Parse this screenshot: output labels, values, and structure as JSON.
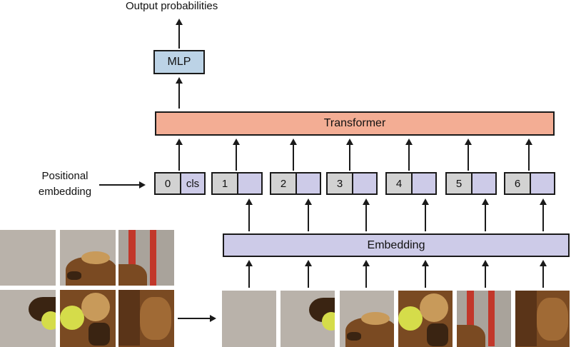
{
  "diagram": {
    "output_label": "Output probabilities",
    "mlp_label": "MLP",
    "transformer_label": "Transformer",
    "embedding_label": "Embedding",
    "positional_label_line1": "Positional",
    "positional_label_line2": "embedding",
    "tokens": [
      {
        "index": "0",
        "content": "cls"
      },
      {
        "index": "1",
        "content": ""
      },
      {
        "index": "2",
        "content": ""
      },
      {
        "index": "3",
        "content": ""
      },
      {
        "index": "4",
        "content": ""
      },
      {
        "index": "5",
        "content": ""
      },
      {
        "index": "6",
        "content": ""
      }
    ]
  },
  "colors": {
    "mlp_fill": "#bcd3e6",
    "transformer_fill": "#f3ad94",
    "embedding_fill": "#cdcbe8",
    "token_index_fill": "#d2d2d2",
    "token_embed_fill": "#cdcbe8",
    "stroke": "#1a1a1a"
  },
  "image": {
    "subject": "dog holding a tennis ball",
    "grid_rows": 2,
    "grid_cols": 3,
    "patch_count": 6
  }
}
